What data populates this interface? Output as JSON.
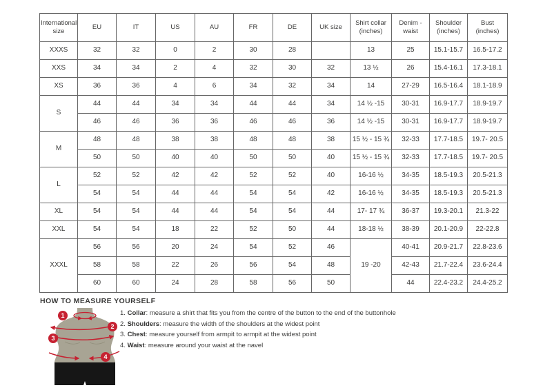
{
  "table": {
    "headers": [
      "International size",
      "EU",
      "IT",
      "US",
      "AU",
      "FR",
      "DE",
      "UK size",
      "Shirt collar (inches)",
      "Denim - waist",
      "Shoulder (inches)",
      "Bust (inches)"
    ],
    "rows": [
      [
        "XXXS",
        "32",
        "32",
        "0",
        "2",
        "30",
        "28",
        "",
        "13",
        "25",
        "15.1-15.7",
        "16.5-17.2"
      ],
      [
        "XXS",
        "34",
        "34",
        "2",
        "4",
        "32",
        "30",
        "32",
        "13 ½",
        "26",
        "15.4-16.1",
        "17.3-18.1"
      ],
      [
        "XS",
        "36",
        "36",
        "4",
        "6",
        "34",
        "32",
        "34",
        "14",
        "27-29",
        "16.5-16.4",
        "18.1-18.9"
      ],
      [
        {
          "t": "S",
          "rs": 2
        },
        "44",
        "44",
        "34",
        "34",
        "44",
        "44",
        "34",
        "14 ½ -15",
        "30-31",
        "16.9-17.7",
        "18.9-19.7"
      ],
      [
        "46",
        "46",
        "36",
        "36",
        "46",
        "46",
        "36",
        "14 ½ -15",
        "30-31",
        "16.9-17.7",
        "18.9-19.7"
      ],
      [
        {
          "t": "M",
          "rs": 2
        },
        "48",
        "48",
        "38",
        "38",
        "48",
        "48",
        "38",
        "15 ½ - 15 ¾",
        "32-33",
        "17.7-18.5",
        "19.7- 20.5"
      ],
      [
        "50",
        "50",
        "40",
        "40",
        "50",
        "50",
        "40",
        "15 ½ - 15 ¾",
        "32-33",
        "17.7-18.5",
        "19.7- 20.5"
      ],
      [
        {
          "t": "L",
          "rs": 2
        },
        "52",
        "52",
        "42",
        "42",
        "52",
        "52",
        "40",
        "16-16 ½",
        "34-35",
        "18.5-19.3",
        "20.5-21.3"
      ],
      [
        "54",
        "54",
        "44",
        "44",
        "54",
        "54",
        "42",
        "16-16 ½",
        "34-35",
        "18.5-19.3",
        "20.5-21.3"
      ],
      [
        "XL",
        "54",
        "54",
        "44",
        "44",
        "54",
        "54",
        "44",
        "17- 17 ¾",
        "36-37",
        "19.3-20.1",
        "21.3-22"
      ],
      [
        "XXL",
        "54",
        "54",
        "18",
        "22",
        "52",
        "50",
        "44",
        "18-18 ½",
        "38-39",
        "20.1-20.9",
        "22-22.8"
      ],
      [
        {
          "t": "XXXL",
          "rs": 3
        },
        "56",
        "56",
        "20",
        "24",
        "54",
        "52",
        "46",
        {
          "t": "19 -20",
          "rs": 3
        },
        "40-41",
        "20.9-21.7",
        "22.8-23.6"
      ],
      [
        "58",
        "58",
        "22",
        "26",
        "56",
        "54",
        "48",
        "42-43",
        "21.7-22.4",
        "23.6-24.4"
      ],
      [
        "60",
        "60",
        "24",
        "28",
        "58",
        "56",
        "50",
        "44",
        "22.4-23.2",
        "24.4-25.2"
      ]
    ]
  },
  "measure": {
    "heading": "HOW TO MEASURE YOURSELF",
    "items": [
      {
        "num": "1.",
        "label": "Collar",
        "text": ": measure a shirt that fits you from the centre of the button to the end of the buttonhole"
      },
      {
        "num": "2.",
        "label": "Shoulders",
        "text": ": measure the width of the shoulders at the widest point"
      },
      {
        "num": "3.",
        "label": "Chest",
        "text": ": measure yourself from armpit to armpit at the widest point"
      },
      {
        "num": "4.",
        "label": "Waist",
        "text": ": measure around your waist at the navel"
      }
    ]
  },
  "figure": {
    "badges": [
      "1",
      "2",
      "3",
      "4"
    ]
  },
  "colors": {
    "accent_red": "#c62131",
    "mannequin": "#a8a494",
    "mannequin_shade": "#93907d",
    "shorts": "#161616",
    "table_border": "#666666",
    "text": "#3c3c3b"
  }
}
